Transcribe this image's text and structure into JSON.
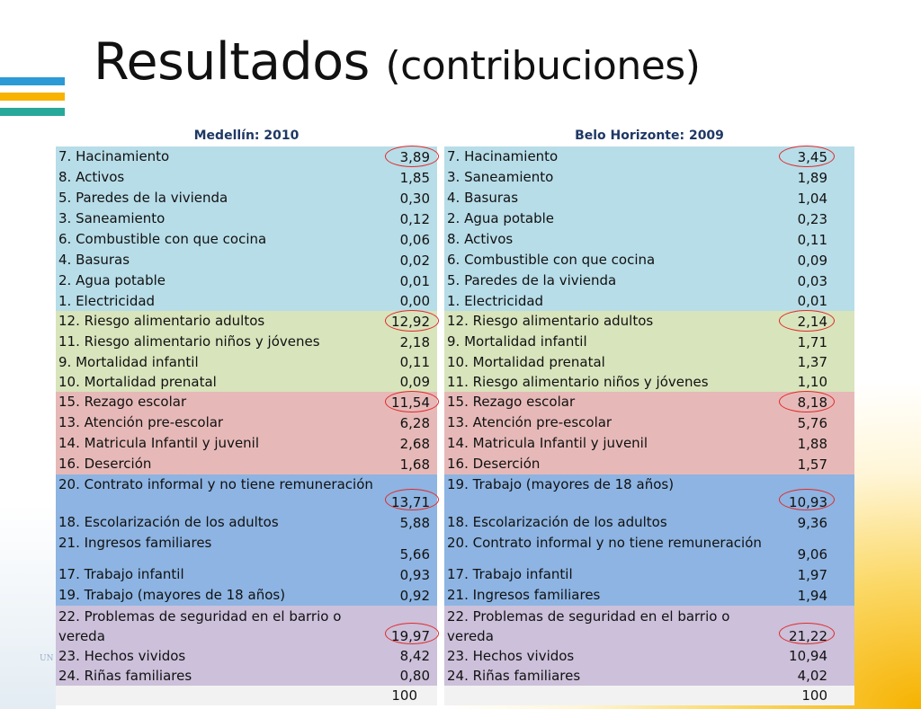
{
  "slide": {
    "title_main": "Resultados",
    "title_sub": "(contribuciones)",
    "faint_logo_text": "UN DE"
  },
  "colors": {
    "vivienda": "#b7dde8",
    "alimentacion": "#d8e4bc",
    "educacion": "#e6b9b8",
    "trabajo": "#8db4e2",
    "seguridad": "#ccc0da",
    "total": "#f2f2f2",
    "circle": "#e02a2a",
    "logo_bars": [
      "#2b9ad5",
      "#f8b200",
      "#27a89a"
    ]
  },
  "tables": [
    {
      "header": "Medellín: 2010",
      "rows": [
        {
          "label": "7. Hacinamiento",
          "value": "3,89",
          "circled": true
        },
        {
          "label": "8. Activos",
          "value": "1,85"
        },
        {
          "label": "5. Paredes de la vivienda",
          "value": "0,30"
        },
        {
          "label": "3. Saneamiento",
          "value": "0,12"
        },
        {
          "label": "6. Combustible con que cocina",
          "value": "0,06"
        },
        {
          "label": "4. Basuras",
          "value": "0,02"
        },
        {
          "label": "2. Agua potable",
          "value": "0,01"
        },
        {
          "label": "1. Electricidad",
          "value": "0,00"
        },
        {
          "label": "12. Riesgo alimentario adultos",
          "value": "12,92",
          "circled": true
        },
        {
          "label": "11. Riesgo alimentario niños y jóvenes",
          "value": "2,18"
        },
        {
          "label": "9. Mortalidad infantil",
          "value": "0,11"
        },
        {
          "label": "10. Mortalidad prenatal",
          "value": "0,09"
        },
        {
          "label": "15. Rezago escolar",
          "value": "11,54",
          "circled": true
        },
        {
          "label": "13. Atención pre-escolar",
          "value": "6,28"
        },
        {
          "label": "14. Matricula Infantil y  juvenil",
          "value": "2,68"
        },
        {
          "label": "16. Deserción",
          "value": "1,68"
        },
        {
          "label": "20. Contrato informal y no tiene remuneración",
          "value": "13,71",
          "circled": true
        },
        {
          "label": "18. Escolarización de los adultos",
          "value": "5,88"
        },
        {
          "label": "21. Ingresos familiares",
          "value": "5,66"
        },
        {
          "label": "17. Trabajo infantil",
          "value": "0,93"
        },
        {
          "label": "19. Trabajo (mayores de 18 años)",
          "value": "0,92"
        },
        {
          "label": "22. Problemas de seguridad en el barrio o vereda",
          "value": "19,97",
          "circled": true
        },
        {
          "label": "23. Hechos vividos",
          "value": "8,42"
        },
        {
          "label": "24. Riñas familiares",
          "value": "0,80"
        },
        {
          "label": "",
          "value": "100"
        }
      ]
    },
    {
      "header": "Belo Horizonte: 2009",
      "rows": [
        {
          "label": "7. Hacinamiento",
          "value": "3,45",
          "circled": true
        },
        {
          "label": "3. Saneamiento",
          "value": "1,89"
        },
        {
          "label": "4. Basuras",
          "value": "1,04"
        },
        {
          "label": "2. Agua potable",
          "value": "0,23"
        },
        {
          "label": "8. Activos",
          "value": "0,11"
        },
        {
          "label": "6. Combustible con que cocina",
          "value": "0,09"
        },
        {
          "label": "5. Paredes de la vivienda",
          "value": "0,03"
        },
        {
          "label": "1. Electricidad",
          "value": "0,01"
        },
        {
          "label": "12. Riesgo alimentario adultos",
          "value": "2,14",
          "circled": true
        },
        {
          "label": "9. Mortalidad infantil",
          "value": "1,71"
        },
        {
          "label": "10. Mortalidad prenatal",
          "value": "1,37"
        },
        {
          "label": "11. Riesgo alimentario niños y jóvenes",
          "value": "1,10"
        },
        {
          "label": "15. Rezago escolar",
          "value": "8,18",
          "circled": true
        },
        {
          "label": "13. Atención pre-escolar",
          "value": "5,76"
        },
        {
          "label": "14. Matricula Infantil y  juvenil",
          "value": "1,88"
        },
        {
          "label": "16. Deserción",
          "value": "1,57"
        },
        {
          "label": "19. Trabajo (mayores de 18 años)",
          "value": "10,93",
          "circled": true
        },
        {
          "label": "18. Escolarización de los adultos",
          "value": "9,36"
        },
        {
          "label": "20. Contrato informal y no tiene remuneración",
          "value": "9,06"
        },
        {
          "label": "17. Trabajo infantil",
          "value": "1,97"
        },
        {
          "label": "21. Ingresos familiares",
          "value": "1,94"
        },
        {
          "label": "22. Problemas de seguridad en el barrio o vereda",
          "value": "21,22",
          "circled": true
        },
        {
          "label": "23. Hechos vividos",
          "value": "10,94"
        },
        {
          "label": "24. Riñas familiares",
          "value": "4,02"
        },
        {
          "label": "",
          "value": "100"
        }
      ]
    }
  ]
}
